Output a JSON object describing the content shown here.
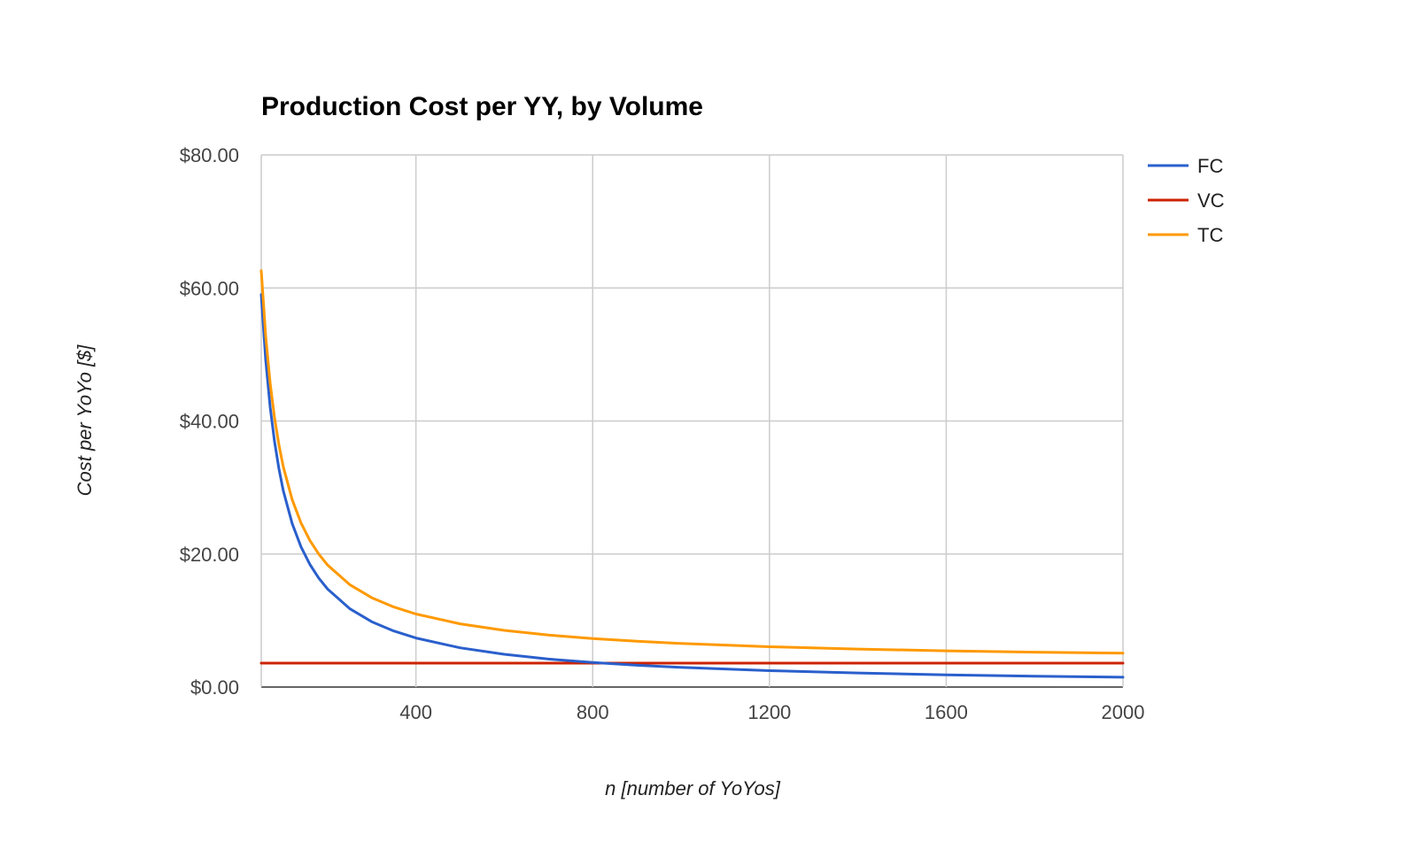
{
  "chart_data": {
    "type": "line",
    "title": "Production Cost per YY, by Volume",
    "xlabel": "n [number of YoYos]",
    "ylabel": "Cost per YoYo [$]",
    "xlim": [
      50,
      2000
    ],
    "ylim": [
      0,
      80
    ],
    "x_ticks": [
      {
        "value": 400,
        "label": "400"
      },
      {
        "value": 800,
        "label": "800"
      },
      {
        "value": 1200,
        "label": "1200"
      },
      {
        "value": 1600,
        "label": "1600"
      },
      {
        "value": 2000,
        "label": "2000"
      }
    ],
    "y_ticks": [
      {
        "value": 0,
        "label": "$0.00"
      },
      {
        "value": 20,
        "label": "$20.00"
      },
      {
        "value": 40,
        "label": "$40.00"
      },
      {
        "value": 60,
        "label": "$60.00"
      },
      {
        "value": 80,
        "label": "$80.00"
      }
    ],
    "grid": true,
    "legend_position": "right",
    "x": [
      50,
      60,
      70,
      80,
      90,
      100,
      120,
      140,
      160,
      180,
      200,
      250,
      300,
      350,
      400,
      500,
      600,
      700,
      800,
      900,
      1000,
      1200,
      1400,
      1600,
      1800,
      2000
    ],
    "series": [
      {
        "name": "FC",
        "color": "#2a5fcc",
        "values": [
          59.0,
          49.17,
          42.14,
          36.88,
          32.78,
          29.5,
          24.58,
          21.07,
          18.44,
          16.39,
          14.75,
          11.8,
          9.83,
          8.43,
          7.38,
          5.9,
          4.92,
          4.21,
          3.69,
          3.28,
          2.95,
          2.46,
          2.11,
          1.84,
          1.64,
          1.48
        ]
      },
      {
        "name": "VC",
        "color": "#cc2200",
        "values": [
          3.6,
          3.6,
          3.6,
          3.6,
          3.6,
          3.6,
          3.6,
          3.6,
          3.6,
          3.6,
          3.6,
          3.6,
          3.6,
          3.6,
          3.6,
          3.6,
          3.6,
          3.6,
          3.6,
          3.6,
          3.6,
          3.6,
          3.6,
          3.6,
          3.6,
          3.6
        ]
      },
      {
        "name": "TC",
        "color": "#ff9900",
        "values": [
          62.6,
          52.77,
          45.74,
          40.48,
          36.38,
          33.1,
          28.18,
          24.67,
          22.04,
          19.99,
          18.35,
          15.4,
          13.43,
          12.03,
          10.98,
          9.5,
          8.52,
          7.81,
          7.29,
          6.88,
          6.55,
          6.06,
          5.71,
          5.44,
          5.24,
          5.08
        ]
      }
    ]
  }
}
